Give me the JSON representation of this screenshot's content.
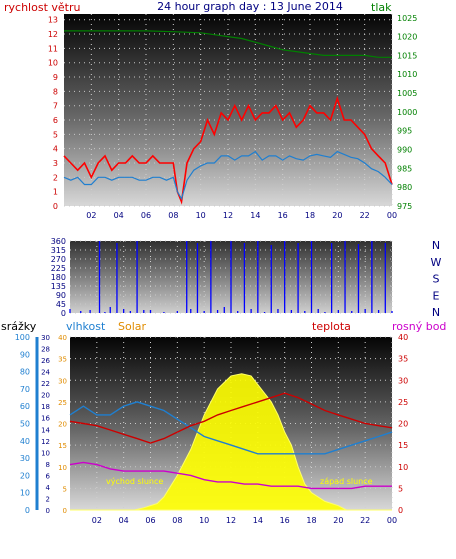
{
  "chart_data": [
    {
      "type": "line",
      "title": "24 hour graph day : 13 June 2014",
      "ylabel": "rychlost větru",
      "y2label": "tlak",
      "colors": {
        "gust": "#ff0000",
        "wind": "#1f7fd0",
        "pressure": "#008000"
      },
      "x_ticks": [
        "02",
        "04",
        "06",
        "08",
        "10",
        "12",
        "14",
        "16",
        "18",
        "20",
        "22",
        "00"
      ],
      "y_ticks": [
        "0",
        "1",
        "2",
        "3",
        "4",
        "5",
        "6",
        "7",
        "8",
        "9",
        "10",
        "11",
        "12",
        "13"
      ],
      "y2_ticks": [
        "975",
        "980",
        "985",
        "990",
        "995",
        "1000",
        "1005",
        "1010",
        "1015",
        "1020",
        "1025"
      ],
      "ylim": [
        0,
        13.4
      ],
      "y2lim": [
        975,
        1026
      ],
      "series": [
        {
          "key": "gust",
          "axis": "y",
          "x": [
            0,
            0.5,
            1,
            1.5,
            2,
            2.5,
            3,
            3.5,
            4,
            4.5,
            5,
            5.5,
            6,
            6.5,
            7,
            7.5,
            8,
            8.3,
            8.6,
            9,
            9.5,
            10,
            10.5,
            11,
            11.5,
            12,
            12.5,
            13,
            13.5,
            14,
            14.5,
            15,
            15.5,
            16,
            16.5,
            17,
            17.5,
            18,
            18.5,
            19,
            19.5,
            20,
            20.5,
            21,
            21.5,
            22,
            22.5,
            23,
            23.5,
            24
          ],
          "values": [
            3.5,
            3,
            2.5,
            3,
            2,
            3,
            3.5,
            2.5,
            3,
            3,
            3.5,
            3,
            3,
            3.5,
            3,
            3,
            3,
            1,
            0.3,
            3,
            4,
            4.5,
            6,
            5,
            6.5,
            6,
            7,
            6,
            7,
            6,
            6.5,
            6.5,
            7,
            6,
            6.5,
            5.5,
            6,
            7,
            6.5,
            6.5,
            6,
            7.5,
            6,
            6,
            5.5,
            5,
            4,
            3.5,
            3,
            1.5
          ]
        },
        {
          "key": "wind",
          "axis": "y",
          "x": [
            0,
            0.5,
            1,
            1.5,
            2,
            2.5,
            3,
            3.5,
            4,
            4.5,
            5,
            5.5,
            6,
            6.5,
            7,
            7.5,
            8,
            8.3,
            8.6,
            9,
            9.5,
            10,
            10.5,
            11,
            11.5,
            12,
            12.5,
            13,
            13.5,
            14,
            14.5,
            15,
            15.5,
            16,
            16.5,
            17,
            17.5,
            18,
            18.5,
            19,
            19.5,
            20,
            20.5,
            21,
            21.5,
            22,
            22.5,
            23,
            23.5,
            24
          ],
          "values": [
            2,
            1.8,
            2,
            1.5,
            1.5,
            2,
            2,
            1.8,
            2,
            2,
            2,
            1.8,
            1.8,
            2,
            2,
            1.8,
            2,
            1,
            0.5,
            1.8,
            2.5,
            2.8,
            3,
            3,
            3.5,
            3.5,
            3.2,
            3.5,
            3.5,
            3.8,
            3.2,
            3.5,
            3.5,
            3.2,
            3.5,
            3.3,
            3.2,
            3.5,
            3.6,
            3.5,
            3.4,
            3.8,
            3.6,
            3.4,
            3.3,
            3,
            2.6,
            2.4,
            2,
            1.5
          ]
        },
        {
          "key": "pressure",
          "axis": "y2",
          "x": [
            0,
            2,
            4,
            6,
            8,
            10,
            11,
            12,
            13,
            14,
            15,
            16,
            17,
            18,
            19,
            20,
            21,
            22,
            23,
            24
          ],
          "values": [
            1021.5,
            1021.5,
            1021.5,
            1021.5,
            1021.3,
            1021,
            1020.5,
            1020,
            1019.5,
            1018.5,
            1017.5,
            1016.5,
            1016,
            1015.5,
            1015,
            1015,
            1015,
            1015,
            1014.5,
            1014.5
          ]
        }
      ]
    },
    {
      "type": "scatter",
      "title": "",
      "colors": {
        "direction": "#0000ff"
      },
      "x_ticks": [
        "02",
        "04",
        "06",
        "08",
        "10",
        "12",
        "14",
        "16",
        "18",
        "20",
        "22",
        "00"
      ],
      "y_ticks": [
        "0",
        "45",
        "90",
        "135",
        "180",
        "225",
        "270",
        "315",
        "360"
      ],
      "compass_labels": [
        "N",
        "W",
        "S",
        "E",
        "N"
      ],
      "ylim": [
        0,
        360
      ],
      "series": [
        {
          "key": "direction",
          "x": [
            0,
            0.8,
            1.5,
            2.2,
            2.6,
            3,
            3.5,
            4,
            4.5,
            5,
            5.5,
            6,
            7,
            8,
            8.7,
            9,
            9.5,
            10,
            10.5,
            11,
            11.5,
            12,
            12.5,
            13,
            13.5,
            14,
            14.5,
            15,
            15.5,
            16,
            16.5,
            17,
            17.5,
            18,
            18.5,
            19,
            19.5,
            20,
            20.5,
            21,
            21.5,
            22,
            22.5,
            23,
            23.5,
            24
          ],
          "values": [
            20,
            10,
            15,
            360,
            5,
            30,
            350,
            20,
            10,
            360,
            15,
            15,
            5,
            10,
            360,
            20,
            350,
            10,
            360,
            15,
            30,
            360,
            10,
            350,
            20,
            360,
            5,
            340,
            20,
            360,
            15,
            350,
            10,
            360,
            20,
            5,
            350,
            15,
            360,
            10,
            345,
            20,
            360,
            15,
            350,
            10
          ]
        }
      ]
    },
    {
      "type": "area",
      "title": "",
      "axis_titles": {
        "rain": "srážky",
        "humidity": "vlhkost",
        "solar": "Solar",
        "temp": "teplota",
        "dew": "rosný bod"
      },
      "annotations": {
        "sunrise": "východ slunce",
        "sunset": "západ slunce"
      },
      "colors": {
        "rain": "#1f7fd0",
        "humidity": "#1f7fd0",
        "solar": "#ffff00",
        "temp": "#cc0000",
        "dew": "#cc00cc"
      },
      "x_ticks": [
        "02",
        "04",
        "06",
        "08",
        "10",
        "12",
        "14",
        "16",
        "18",
        "20",
        "22",
        "00"
      ],
      "rain_ticks": [
        "0",
        "10",
        "20",
        "30",
        "40",
        "50",
        "60",
        "70",
        "80",
        "90",
        "100"
      ],
      "humidity_ticks": [
        "0",
        "2",
        "4",
        "6",
        "8",
        "10",
        "12",
        "14",
        "16",
        "18",
        "20",
        "22",
        "24",
        "26",
        "28",
        "30"
      ],
      "temp_ticks": [
        "0",
        "5",
        "10",
        "15",
        "20",
        "25",
        "30",
        "35",
        "40"
      ],
      "temp_ticks_right": [
        "0",
        "5",
        "10",
        "15",
        "20",
        "25",
        "30",
        "35",
        "40"
      ],
      "series": [
        {
          "key": "solar",
          "axis": "temp",
          "x": [
            0,
            4.8,
            5.5,
            6.5,
            7,
            8,
            9,
            10,
            11,
            12,
            12.8,
            13.5,
            14,
            14.5,
            15,
            15.5,
            16,
            16.5,
            17,
            17.5,
            18,
            18.5,
            19,
            19.5,
            20,
            20.6,
            21,
            24
          ],
          "values": [
            0,
            0,
            0.5,
            1.5,
            3,
            8,
            14,
            22,
            28,
            31,
            31.5,
            31,
            29,
            27,
            25,
            22,
            18,
            15,
            10,
            6,
            4,
            3,
            2,
            1.5,
            1,
            0,
            0,
            0
          ]
        },
        {
          "key": "humidity",
          "axis": "temp",
          "x": [
            0,
            1,
            2,
            3,
            4,
            5,
            6,
            7,
            8,
            9,
            10,
            11,
            12,
            13,
            14,
            15,
            16,
            17,
            18,
            19,
            20,
            21,
            22,
            23,
            24
          ],
          "values": [
            22,
            24,
            22,
            22,
            24,
            25,
            24,
            23,
            21,
            19,
            17,
            16,
            15,
            14,
            13,
            13,
            13,
            13,
            13,
            13,
            14,
            15,
            16,
            17,
            18
          ]
        },
        {
          "key": "temp",
          "axis": "temp",
          "x": [
            0,
            1,
            2,
            3,
            4,
            5,
            6,
            7,
            8,
            9,
            10,
            11,
            12,
            13,
            14,
            15,
            16,
            17,
            18,
            19,
            20,
            21,
            22,
            23,
            24
          ],
          "values": [
            20.5,
            20,
            19.5,
            18.5,
            17.5,
            16.5,
            15.5,
            16.5,
            18,
            19.5,
            20.5,
            22,
            23,
            24,
            25,
            26,
            27,
            26,
            24.5,
            23,
            22,
            21,
            20,
            19.5,
            19
          ]
        },
        {
          "key": "dew",
          "axis": "temp",
          "x": [
            0,
            1,
            2,
            3,
            4,
            5,
            6,
            7,
            8,
            9,
            10,
            11,
            12,
            13,
            14,
            15,
            16,
            17,
            18,
            19,
            20,
            21,
            22,
            23,
            24
          ],
          "values": [
            10.5,
            11,
            10.5,
            9.5,
            9,
            9,
            9,
            9,
            8.5,
            8,
            7,
            6.5,
            6.5,
            6,
            6,
            5.5,
            5.5,
            5.5,
            5,
            5,
            5,
            5,
            5.5,
            5.5,
            5.5
          ]
        }
      ]
    }
  ]
}
